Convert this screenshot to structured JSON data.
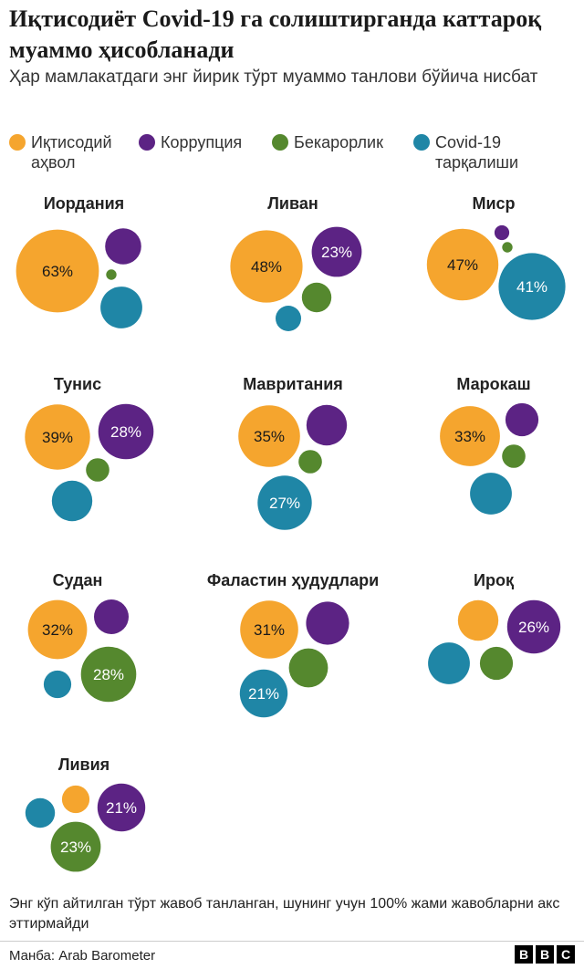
{
  "title": "Иқтисодиёт Covid-19 га солиштирганда каттароқ муаммо ҳисобланади",
  "subtitle": "Ҳар мамлакатдаги энг йирик тўрт муаммо танлови бўйича нисбат",
  "colors": {
    "economy": "#f5a52e",
    "corruption": "#5c2384",
    "unemployment": "#55882e",
    "covid": "#1f86a6"
  },
  "legend": [
    {
      "key": "economy",
      "label": "Иқтисодий аҳвол"
    },
    {
      "key": "corruption",
      "label": "Коррупция"
    },
    {
      "key": "unemployment",
      "label": "Бекарорлик"
    },
    {
      "key": "covid",
      "label": "Covid-19 тарқалиши"
    }
  ],
  "chart_data": {
    "type": "bubble",
    "series": [
      {
        "key": "economy",
        "name": "Иқтисодий аҳвол"
      },
      {
        "key": "corruption",
        "name": "Коррупция"
      },
      {
        "key": "unemployment",
        "name": "Бекарорлик"
      },
      {
        "key": "covid",
        "name": "Covid-19 тарқалиши"
      }
    ],
    "countries": [
      {
        "name": "Иордания",
        "values": {
          "economy": 63,
          "corruption": 12,
          "unemployment": 1,
          "covid": 16
        },
        "labels": {
          "economy": "63%"
        }
      },
      {
        "name": "Ливан",
        "values": {
          "economy": 48,
          "corruption": 23,
          "unemployment": 8,
          "covid": 6
        },
        "labels": {
          "economy": "48%",
          "corruption": "23%"
        }
      },
      {
        "name": "Миср",
        "values": {
          "economy": 47,
          "corruption": 2,
          "unemployment": 1,
          "covid": 41
        },
        "labels": {
          "economy": "47%",
          "covid": "41%"
        }
      },
      {
        "name": "Тунис",
        "values": {
          "economy": 39,
          "corruption": 28,
          "unemployment": 5,
          "covid": 15
        },
        "labels": {
          "economy": "39%",
          "corruption": "28%"
        }
      },
      {
        "name": "Мавритания",
        "values": {
          "economy": 35,
          "corruption": 15,
          "unemployment": 5,
          "covid": 27
        },
        "labels": {
          "economy": "35%",
          "covid": "27%"
        }
      },
      {
        "name": "Марокаш",
        "values": {
          "economy": 33,
          "corruption": 10,
          "unemployment": 5,
          "covid": 16
        },
        "labels": {
          "economy": "33%"
        }
      },
      {
        "name": "Судан",
        "values": {
          "economy": 32,
          "corruption": 11,
          "unemployment": 28,
          "covid": 7
        },
        "labels": {
          "economy": "32%",
          "unemployment": "28%"
        }
      },
      {
        "name": "Фаластин ҳудудлари",
        "values": {
          "economy": 31,
          "corruption": 17,
          "unemployment": 14,
          "covid": 21
        },
        "labels": {
          "economy": "31%",
          "covid": "21%"
        }
      },
      {
        "name": "Ироқ",
        "values": {
          "economy": 15,
          "corruption": 26,
          "unemployment": 10,
          "covid": 16
        },
        "labels": {
          "corruption": "26%"
        }
      },
      {
        "name": "Ливия",
        "values": {
          "economy": 7,
          "corruption": 21,
          "unemployment": 23,
          "covid": 8
        },
        "labels": {
          "corruption": "21%",
          "unemployment": "23%"
        }
      }
    ]
  },
  "note": "Энг кўп айтилган тўрт жавоб танланган, шунинг учун 100% жами жавобларни акс эттирмайди",
  "source": "Манба: Arab Barometer",
  "logo": [
    "B",
    "B",
    "C"
  ]
}
